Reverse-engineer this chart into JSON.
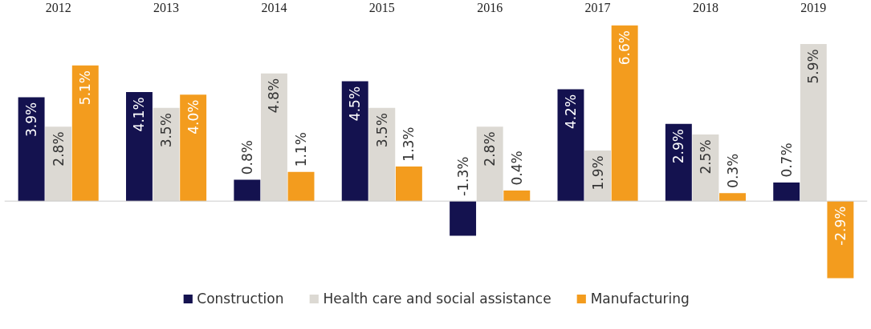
{
  "chart_data": {
    "type": "bar",
    "categories": [
      "2012",
      "2013",
      "2014",
      "2015",
      "2016",
      "2017",
      "2018",
      "2019"
    ],
    "series": [
      {
        "name": "Construction",
        "color": "#14124f",
        "values": [
          3.9,
          4.1,
          0.8,
          4.5,
          -1.3,
          4.2,
          2.9,
          0.7
        ],
        "value_labels": [
          "3.9%",
          "4.1%",
          "0.8%",
          "4.5%",
          "-1.3%",
          "4.2%",
          "2.9%",
          "0.7%"
        ]
      },
      {
        "name": "Health care and social assistance",
        "color": "#dcd9d3",
        "values": [
          2.8,
          3.5,
          4.8,
          3.5,
          2.8,
          1.9,
          2.5,
          5.9
        ],
        "value_labels": [
          "2.8%",
          "3.5%",
          "4.8%",
          "3.5%",
          "2.8%",
          "1.9%",
          "2.5%",
          "5.9%"
        ]
      },
      {
        "name": "Manufacturing",
        "color": "#f39c1e",
        "values": [
          5.1,
          4.0,
          1.1,
          1.3,
          0.4,
          6.6,
          0.3,
          -2.9
        ],
        "value_labels": [
          "5.1%",
          "4.0%",
          "1.1%",
          "1.3%",
          "0.4%",
          "6.6%",
          "0.3%",
          "-2.9%"
        ]
      }
    ],
    "legend": "bottom"
  }
}
